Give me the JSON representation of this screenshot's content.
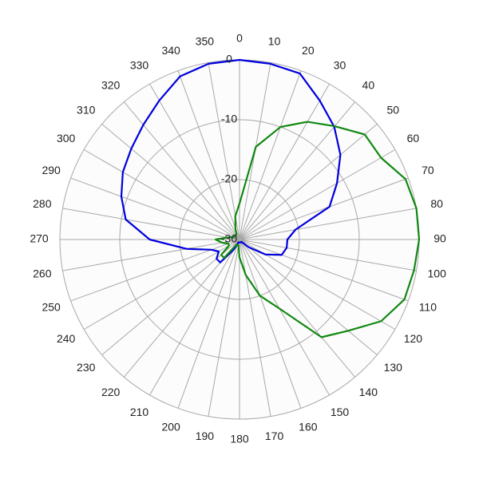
{
  "chart_data": {
    "type": "polar",
    "theta": [
      0,
      10,
      20,
      30,
      40,
      50,
      60,
      70,
      80,
      90,
      100,
      110,
      120,
      130,
      140,
      150,
      160,
      170,
      180,
      190,
      200,
      210,
      220,
      230,
      240,
      250,
      260,
      270,
      280,
      290,
      300,
      310,
      320,
      330,
      340,
      350
    ],
    "thetaticks": [
      0,
      10,
      20,
      30,
      40,
      50,
      60,
      70,
      80,
      90,
      100,
      110,
      120,
      130,
      140,
      150,
      160,
      170,
      180,
      190,
      200,
      210,
      220,
      230,
      240,
      250,
      260,
      270,
      280,
      290,
      300,
      310,
      320,
      330,
      340,
      350
    ],
    "rlim": [
      -30,
      0
    ],
    "rticks": [
      -30,
      -20,
      -10,
      0
    ],
    "direction": "clockwise",
    "zero": "top",
    "grid": true,
    "series": [
      {
        "color": "#0000dd",
        "values": [
          0,
          -0.2,
          -0.5,
          -3.2,
          -5.4,
          -8,
          -11.2,
          -14,
          -20.5,
          -22,
          -22,
          -22.5,
          -25,
          -28,
          -29.5,
          -29.5,
          -29.5,
          -29.5,
          -29.5,
          -29.5,
          -29.5,
          -28,
          -25,
          -25,
          -26,
          -25,
          -21,
          -15,
          -10.7,
          -9,
          -7.5,
          -6.4,
          -5,
          -3.2,
          -1,
          -0.2
        ]
      },
      {
        "color": "#118811",
        "values": [
          -24,
          -14.3,
          -10,
          -7.3,
          -5.3,
          -2.7,
          -2.7,
          -0.5,
          0,
          0,
          -0.4,
          -0.7,
          -2.7,
          -6.3,
          -8.7,
          -16.7,
          -20,
          -24,
          -27,
          -29,
          -29,
          -29,
          -26,
          -26,
          -28,
          -28,
          -27,
          -26,
          -28,
          -29,
          -29,
          -29,
          -29,
          -29,
          -28,
          -26
        ]
      }
    ]
  }
}
